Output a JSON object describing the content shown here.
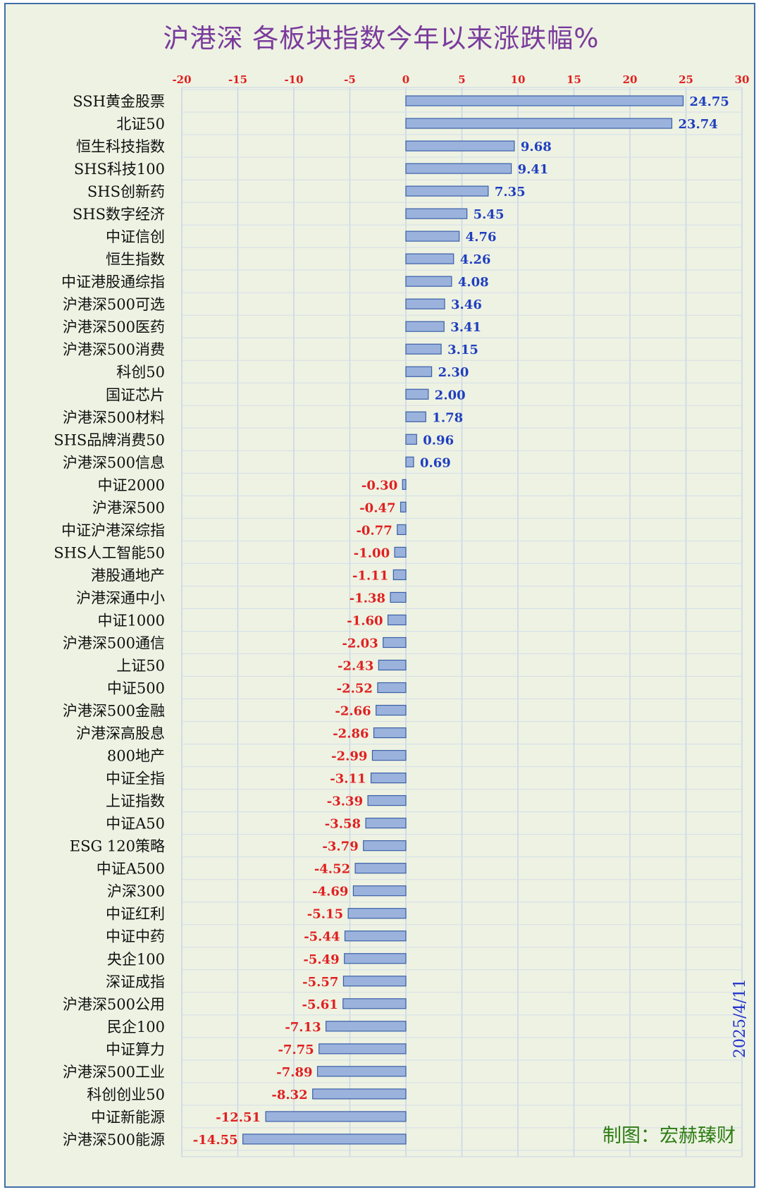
{
  "chart_data": {
    "type": "bar",
    "orientation": "horizontal",
    "title": "沪港深 各板块指数今年以来涨跌幅%",
    "xlim": [
      -20,
      30
    ],
    "xticks": [
      -20,
      -15,
      -10,
      -5,
      0,
      5,
      10,
      15,
      20,
      25,
      30
    ],
    "grid": true,
    "categories": [
      "SSH黄金股票",
      "北证50",
      "恒生科技指数",
      "SHS科技100",
      "SHS创新药",
      "SHS数字经济",
      "中证信创",
      "恒生指数",
      "中证港股通综指",
      "沪港深500可选",
      "沪港深500医药",
      "沪港深500消费",
      "科创50",
      "国证芯片",
      "沪港深500材料",
      "SHS品牌消费50",
      "沪港深500信息",
      "中证2000",
      "沪港深500",
      "中证沪港深综指",
      "SHS人工智能50",
      "港股通地产",
      "沪港深通中小",
      "中证1000",
      "沪港深500通信",
      "上证50",
      "中证500",
      "沪港深500金融",
      "沪港深高股息",
      "800地产",
      "中证全指",
      "上证指数",
      "中证A50",
      "ESG 120策略",
      "中证A500",
      "沪深300",
      "中证红利",
      "中证中药",
      "央企100",
      "深证成指",
      "沪港深500公用",
      "民企100",
      "中证算力",
      "沪港深500工业",
      "科创创业50",
      "中证新能源",
      "沪港深500能源"
    ],
    "values": [
      24.75,
      23.74,
      9.68,
      9.41,
      7.35,
      5.45,
      4.76,
      4.26,
      4.08,
      3.46,
      3.41,
      3.15,
      2.3,
      2.0,
      1.78,
      0.96,
      0.69,
      -0.3,
      -0.47,
      -0.77,
      -1.0,
      -1.11,
      -1.38,
      -1.6,
      -2.03,
      -2.43,
      -2.52,
      -2.66,
      -2.86,
      -2.99,
      -3.11,
      -3.39,
      -3.58,
      -3.79,
      -4.52,
      -4.69,
      -5.15,
      -5.44,
      -5.49,
      -5.57,
      -5.61,
      -7.13,
      -7.75,
      -7.89,
      -8.32,
      -12.51,
      -14.55
    ],
    "value_labels": [
      "24.75",
      "23.74",
      "9.68",
      "9.41",
      "7.35",
      "5.45",
      "4.76",
      "4.26",
      "4.08",
      "3.46",
      "3.41",
      "3.15",
      "2.30",
      "2.00",
      "1.78",
      "0.96",
      "0.69",
      "-0.30",
      "-0.47",
      "-0.77",
      "-1.00",
      "-1.11",
      "-1.38",
      "-1.60",
      "-2.03",
      "-2.43",
      "-2.52",
      "-2.66",
      "-2.86",
      "-2.99",
      "-3.11",
      "-3.39",
      "-3.58",
      "-3.79",
      "-4.52",
      "-4.69",
      "-5.15",
      "-5.44",
      "-5.49",
      "-5.57",
      "-5.61",
      "-7.13",
      "-7.75",
      "-7.89",
      "-8.32",
      "-12.51",
      "-14.55"
    ],
    "colors": {
      "bar_fill": "#9bb3dc",
      "bar_stroke": "#3a5fa8",
      "positive_label": "#1f3fbf",
      "negative_label": "#e02020",
      "tick_label": "#e02020",
      "title": "#7a3b9c"
    }
  },
  "annotations": {
    "date": "2025/4/11",
    "credit": "制图：宏赫臻财"
  }
}
